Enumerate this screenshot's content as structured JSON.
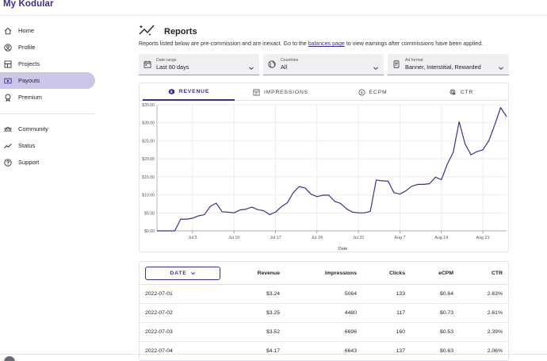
{
  "app": {
    "title": "My Kodular"
  },
  "sidebar": {
    "items": [
      {
        "label": "Home",
        "icon": "home-icon"
      },
      {
        "label": "Profile",
        "icon": "profile-icon"
      },
      {
        "label": "Projects",
        "icon": "projects-icon"
      },
      {
        "label": "Payouts",
        "icon": "payouts-icon",
        "active": true
      },
      {
        "label": "Premium",
        "icon": "premium-icon"
      },
      {
        "label": "Community",
        "icon": "community-icon"
      },
      {
        "label": "Status",
        "icon": "status-icon"
      },
      {
        "label": "Support",
        "icon": "support-icon"
      }
    ]
  },
  "page": {
    "title": "Reports",
    "notice_before": "Reports listed below are pre-commission and are inexact. Go to the ",
    "notice_link": "balances page",
    "notice_after": " to view earnings after commissions have been applied."
  },
  "filters": {
    "date_range": {
      "label": "Date range",
      "value": "Last 60 days"
    },
    "countries": {
      "label": "Countries",
      "value": "All"
    },
    "ad_format": {
      "label": "Ad format",
      "value": "Banner, Interstitial, Rewarded"
    }
  },
  "tabs": [
    {
      "label": "REVENUE",
      "icon": "revenue-icon",
      "active": true
    },
    {
      "label": "IMPRESSIONS",
      "icon": "impressions-icon"
    },
    {
      "label": "ECPM",
      "icon": "ecpm-icon"
    },
    {
      "label": "CTR",
      "icon": "ctr-icon"
    }
  ],
  "colors": {
    "accent": "#3d2f8f",
    "active_nav": "#cdc6ea",
    "grid": "#e6e6ec"
  },
  "chart_data": {
    "type": "line",
    "xlabel": "Date",
    "ylabel": "",
    "ylim": [
      0,
      35
    ],
    "yticks": [
      0,
      5,
      10,
      15,
      20,
      25,
      30,
      35
    ],
    "ytick_labels": [
      "$0.00",
      "$5.00",
      "$10.00",
      "$15.00",
      "$20.00",
      "$25.00",
      "$30.00",
      "$35.00"
    ],
    "x_start": "2022-06-27",
    "x_end": "2022-08-25",
    "xticks": [
      "2022-07-03",
      "2022-07-10",
      "2022-07-17",
      "2022-07-24",
      "2022-07-31",
      "2022-08-07",
      "2022-08-14",
      "2022-08-21"
    ],
    "xtick_labels": [
      "Jul 3",
      "Jul 10",
      "Jul 17",
      "Jul 24",
      "Jul 31",
      "Aug 7",
      "Aug 14",
      "Aug 21"
    ],
    "grid": true,
    "series": [
      {
        "x": [
          "2022-06-27",
          "2022-06-28",
          "2022-06-29",
          "2022-06-30",
          "2022-07-01",
          "2022-07-02",
          "2022-07-03",
          "2022-07-04",
          "2022-07-05",
          "2022-07-06",
          "2022-07-07",
          "2022-07-08",
          "2022-07-09",
          "2022-07-10",
          "2022-07-11",
          "2022-07-12",
          "2022-07-13",
          "2022-07-14",
          "2022-07-15",
          "2022-07-16",
          "2022-07-17",
          "2022-07-18",
          "2022-07-19",
          "2022-07-20",
          "2022-07-21",
          "2022-07-22",
          "2022-07-23",
          "2022-07-24",
          "2022-07-25",
          "2022-07-26",
          "2022-07-27",
          "2022-07-28",
          "2022-07-29",
          "2022-07-30",
          "2022-07-31",
          "2022-08-01",
          "2022-08-02",
          "2022-08-03",
          "2022-08-04",
          "2022-08-05",
          "2022-08-06",
          "2022-08-07",
          "2022-08-08",
          "2022-08-09",
          "2022-08-10",
          "2022-08-11",
          "2022-08-12",
          "2022-08-13",
          "2022-08-14",
          "2022-08-15",
          "2022-08-16",
          "2022-08-17",
          "2022-08-18",
          "2022-08-19",
          "2022-08-20",
          "2022-08-21",
          "2022-08-22",
          "2022-08-23",
          "2022-08-24",
          "2022-08-25"
        ],
        "values": [
          0,
          0,
          0,
          0,
          3.24,
          3.25,
          3.52,
          4.17,
          4.5,
          6.8,
          7.7,
          5.3,
          5.2,
          5.0,
          5.8,
          6.0,
          6.6,
          5.9,
          5.6,
          4.5,
          5.2,
          6.7,
          7.8,
          10.6,
          12.3,
          11.9,
          10.2,
          9.5,
          9.9,
          9.9,
          8.2,
          7.6,
          6.1,
          5.2,
          5.0,
          5.0,
          5.4,
          14.1,
          13.9,
          13.8,
          10.6,
          10.2,
          11.1,
          12.4,
          12.9,
          12.9,
          13.1,
          14.9,
          14.2,
          18.5,
          21.8,
          30.3,
          24.1,
          21.1,
          22.0,
          22.5,
          25.0,
          29.4,
          34.2,
          31.7
        ]
      }
    ]
  },
  "table": {
    "date_button_label": "DATE",
    "columns": [
      "Revenue",
      "Impressions",
      "Clicks",
      "eCPM",
      "CTR"
    ],
    "rows": [
      [
        "2022-07-01",
        "$3.24",
        "5064",
        "133",
        "$0.64",
        "2.63%"
      ],
      [
        "2022-07-02",
        "$3.25",
        "4480",
        "117",
        "$0.73",
        "2.61%"
      ],
      [
        "2022-07-03",
        "$3.52",
        "6696",
        "160",
        "$0.53",
        "2.39%"
      ],
      [
        "2022-07-04",
        "$4.17",
        "6643",
        "137",
        "$0.63",
        "2.06%"
      ]
    ]
  }
}
